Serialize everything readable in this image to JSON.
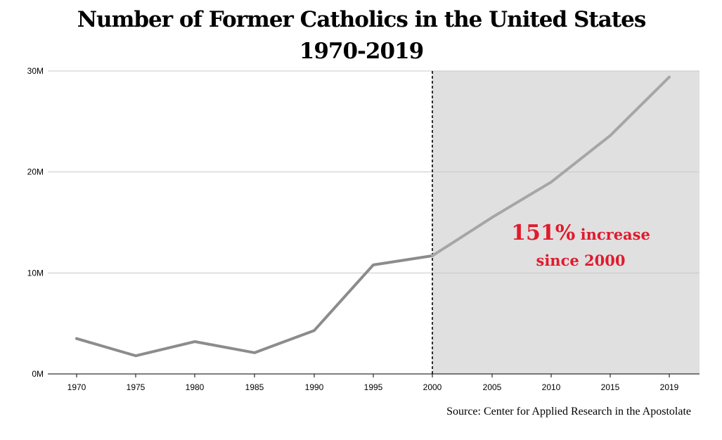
{
  "title_line1": "Number of Former Catholics in the United States",
  "title_line2": "1970-2019",
  "annotation": {
    "big": "151%",
    "line1_rest": " increase",
    "line2": "since 2000"
  },
  "source": "Source: Center for Applied Research in the Apostolate",
  "colors": {
    "line": "#8c8c8c",
    "line_shaded": "#a6a6a6",
    "shade": "#e0e0e0",
    "annotation": "#e01b2d",
    "grid": "#c8c8c8"
  },
  "chart_data": {
    "type": "line",
    "title": "Number of Former Catholics in the United States 1970-2019",
    "xlabel": "",
    "ylabel": "",
    "x": [
      1970,
      1975,
      1980,
      1985,
      1990,
      1995,
      2000,
      2005,
      2010,
      2015,
      2019
    ],
    "x_tick_labels": [
      "1970",
      "1975",
      "1980",
      "1985",
      "1990",
      "1995",
      "2000",
      "2005",
      "2010",
      "2015",
      "2019"
    ],
    "series": [
      {
        "values": [
          3.5,
          1.8,
          3.2,
          2.1,
          4.3,
          10.8,
          11.7,
          15.5,
          19.0,
          23.6,
          29.4
        ]
      }
    ],
    "y_unit": "millions",
    "ylim": [
      0,
      30
    ],
    "y_ticks": [
      0,
      10,
      20,
      30
    ],
    "y_tick_labels": [
      "0M",
      "10M",
      "20M",
      "30M"
    ],
    "grid": true,
    "shaded_region": {
      "from": 2000,
      "to": 2019
    },
    "vertical_marker": 2000,
    "annotation": "151% increase since 2000"
  }
}
